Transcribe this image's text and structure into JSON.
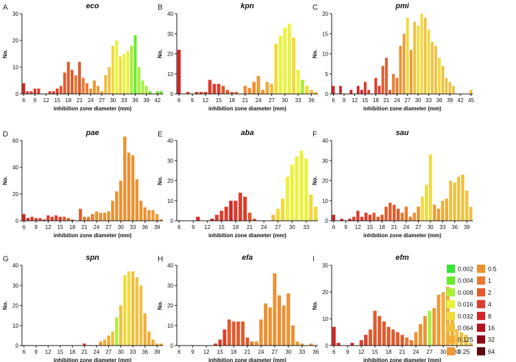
{
  "legend": [
    {
      "label": "0.002",
      "color": "#33e633"
    },
    {
      "label": "0.004",
      "color": "#66ee22"
    },
    {
      "label": "0.008",
      "color": "#a6f03a"
    },
    {
      "label": "0.016",
      "color": "#eaf23c"
    },
    {
      "label": "0.032",
      "color": "#f2d93c"
    },
    {
      "label": "0.064",
      "color": "#f0c040"
    },
    {
      "label": "0.125",
      "color": "#f0ac36"
    },
    {
      "label": "0.25",
      "color": "#ee9a34"
    },
    {
      "label": "0.5",
      "color": "#ee9030"
    },
    {
      "label": "1",
      "color": "#ea7a30"
    },
    {
      "label": "2",
      "color": "#e25a2c"
    },
    {
      "label": "4",
      "color": "#de3c2c"
    },
    {
      "label": "8",
      "color": "#d42424"
    },
    {
      "label": "16",
      "color": "#b8121e"
    },
    {
      "label": "32",
      "color": "#8c0a18"
    },
    {
      "label": "64",
      "color": "#5e0610"
    }
  ],
  "chart_data": [
    {
      "letter": "A",
      "title": "eco",
      "type": "bar",
      "xlabel": "inhibition zone diameter (mm)",
      "ylabel": "No.",
      "xlim": [
        6,
        43
      ],
      "ylim": [
        0,
        30
      ],
      "yticks": [
        0,
        10,
        20,
        30
      ],
      "xticks": [
        6,
        9,
        12,
        15,
        18,
        21,
        24,
        27,
        30,
        33,
        36,
        39,
        42
      ],
      "x": [
        6,
        7,
        8,
        9,
        10,
        11,
        12,
        13,
        14,
        15,
        16,
        17,
        18,
        19,
        20,
        21,
        22,
        23,
        24,
        25,
        26,
        27,
        28,
        29,
        30,
        31,
        32,
        33,
        34,
        35,
        36,
        37,
        38,
        39,
        40,
        41,
        42,
        43
      ],
      "values": [
        4,
        1,
        1,
        2,
        2,
        0,
        0,
        1,
        1,
        2,
        3,
        8,
        12,
        9,
        7,
        12,
        6,
        4,
        2,
        5,
        3,
        1,
        7,
        10,
        18,
        20,
        14,
        15,
        16,
        18,
        22,
        10,
        5,
        3,
        1,
        0,
        1,
        1
      ],
      "colors": [
        12,
        11,
        11,
        11,
        11,
        11,
        11,
        11,
        11,
        11,
        10,
        10,
        10,
        10,
        9,
        10,
        9,
        9,
        8,
        8,
        7,
        7,
        5,
        5,
        4,
        3,
        4,
        3,
        3,
        2,
        1,
        2,
        2,
        2,
        1,
        1,
        1,
        1
      ]
    },
    {
      "letter": "B",
      "title": "kpn",
      "type": "bar",
      "xlabel": "inhibition zone diameter (mm)",
      "ylabel": "No.",
      "xlim": [
        6,
        37
      ],
      "ylim": [
        0,
        40
      ],
      "yticks": [
        0,
        10,
        20,
        30,
        40
      ],
      "xticks": [
        6,
        9,
        12,
        15,
        18,
        21,
        24,
        27,
        30,
        33,
        36
      ],
      "x": [
        6,
        7,
        8,
        9,
        10,
        11,
        12,
        13,
        14,
        15,
        16,
        17,
        18,
        19,
        20,
        21,
        22,
        23,
        24,
        25,
        26,
        27,
        28,
        29,
        30,
        31,
        32,
        33,
        34,
        35,
        36,
        37
      ],
      "values": [
        22,
        0,
        1,
        0,
        1,
        1,
        1,
        7,
        5,
        5,
        4,
        2,
        1,
        1,
        0,
        4,
        3,
        6,
        9,
        2,
        6,
        5,
        25,
        29,
        33,
        35,
        28,
        12,
        7,
        4,
        2,
        1
      ],
      "colors": [
        12,
        12,
        11,
        11,
        11,
        11,
        11,
        11,
        11,
        11,
        10,
        10,
        10,
        10,
        10,
        8,
        8,
        8,
        7,
        7,
        6,
        5,
        4,
        3,
        3,
        3,
        4,
        3,
        2,
        4,
        5,
        5
      ]
    },
    {
      "letter": "C",
      "title": "pmi",
      "type": "bar",
      "xlabel": "inhibition zone diameter (mm)",
      "ylabel": "No.",
      "xlim": [
        6,
        45
      ],
      "ylim": [
        0,
        20
      ],
      "yticks": [
        0,
        5,
        10,
        15,
        20
      ],
      "xticks": [
        6,
        9,
        12,
        15,
        18,
        21,
        24,
        27,
        30,
        33,
        36,
        39,
        42,
        45
      ],
      "x": [
        6,
        7,
        8,
        9,
        10,
        11,
        12,
        13,
        14,
        15,
        16,
        17,
        18,
        19,
        20,
        21,
        22,
        23,
        24,
        25,
        26,
        27,
        28,
        29,
        30,
        31,
        32,
        33,
        34,
        35,
        36,
        37,
        38,
        39,
        40,
        41,
        42,
        43,
        44,
        45
      ],
      "values": [
        2,
        0,
        2,
        0,
        0,
        1,
        0,
        2,
        1,
        3,
        1,
        0,
        4,
        2,
        7,
        9,
        1,
        5,
        4,
        12,
        15,
        19,
        11,
        18,
        17,
        20,
        19,
        16,
        13,
        12,
        9,
        7,
        4,
        3,
        2,
        0,
        0,
        0,
        0,
        1
      ],
      "colors": [
        12,
        12,
        12,
        12,
        12,
        12,
        12,
        12,
        12,
        11,
        11,
        11,
        11,
        11,
        10,
        10,
        10,
        9,
        9,
        8,
        7,
        4,
        7,
        5,
        4,
        4,
        5,
        4,
        5,
        5,
        4,
        5,
        5,
        5,
        5,
        5,
        5,
        5,
        5,
        5
      ]
    },
    {
      "letter": "D",
      "title": "pae",
      "type": "bar",
      "xlabel": "inhibition zone diameter (mm)",
      "ylabel": "No.",
      "xlim": [
        6,
        40
      ],
      "ylim": [
        0,
        60
      ],
      "yticks": [
        0,
        20,
        40,
        60
      ],
      "xticks": [
        6,
        9,
        12,
        15,
        18,
        21,
        24,
        27,
        30,
        33,
        36,
        39
      ],
      "x": [
        6,
        7,
        8,
        9,
        10,
        11,
        12,
        13,
        14,
        15,
        16,
        17,
        18,
        19,
        20,
        21,
        22,
        23,
        24,
        25,
        26,
        27,
        28,
        29,
        30,
        31,
        32,
        33,
        34,
        35,
        36,
        37,
        38,
        39,
        40
      ],
      "values": [
        5,
        2,
        3,
        2,
        2,
        1,
        4,
        3,
        4,
        3,
        3,
        2,
        1,
        0,
        9,
        3,
        3,
        5,
        7,
        6,
        6,
        7,
        15,
        22,
        30,
        63,
        51,
        49,
        31,
        15,
        10,
        8,
        8,
        5,
        1
      ],
      "colors": [
        12,
        12,
        11,
        11,
        11,
        11,
        11,
        11,
        11,
        11,
        10,
        10,
        10,
        10,
        10,
        9,
        9,
        9,
        8,
        8,
        8,
        8,
        8,
        8,
        8,
        8,
        8,
        8,
        8,
        8,
        8,
        8,
        7,
        7,
        7
      ]
    },
    {
      "letter": "E",
      "title": "aba",
      "type": "bar",
      "xlabel": "inhibition zone diameter (mm)",
      "ylabel": "No.",
      "xlim": [
        6,
        35
      ],
      "ylim": [
        0,
        40
      ],
      "yticks": [
        0,
        10,
        20,
        30,
        40
      ],
      "xticks": [
        6,
        9,
        12,
        15,
        18,
        21,
        24,
        27,
        30,
        33
      ],
      "x": [
        6,
        7,
        8,
        9,
        10,
        11,
        12,
        13,
        14,
        15,
        16,
        17,
        18,
        19,
        20,
        21,
        22,
        23,
        24,
        25,
        26,
        27,
        28,
        29,
        30,
        31,
        32,
        33,
        34,
        35
      ],
      "values": [
        0,
        0,
        0,
        0,
        2,
        0,
        0,
        1,
        3,
        5,
        7,
        10,
        10,
        14,
        12,
        4,
        1,
        0,
        0,
        0,
        3,
        6,
        11,
        22,
        28,
        32,
        35,
        31,
        13,
        7
      ],
      "colors": [
        12,
        12,
        12,
        12,
        12,
        12,
        12,
        12,
        11,
        11,
        11,
        12,
        11,
        11,
        11,
        10,
        10,
        10,
        9,
        9,
        5,
        4,
        4,
        3,
        3,
        3,
        3,
        3,
        4,
        4
      ]
    },
    {
      "letter": "F",
      "title": "sau",
      "type": "bar",
      "xlabel": "inhibition zone diameter (mm)",
      "ylabel": "No.",
      "xlim": [
        6,
        40
      ],
      "ylim": [
        0,
        40
      ],
      "yticks": [
        0,
        10,
        20,
        30,
        40
      ],
      "xticks": [
        6,
        9,
        12,
        15,
        18,
        21,
        24,
        27,
        30,
        33,
        36,
        39
      ],
      "x": [
        6,
        7,
        8,
        9,
        10,
        11,
        12,
        13,
        14,
        15,
        16,
        17,
        18,
        19,
        20,
        21,
        22,
        23,
        24,
        25,
        26,
        27,
        28,
        29,
        30,
        31,
        32,
        33,
        34,
        35,
        36,
        37,
        38,
        39,
        40
      ],
      "values": [
        3,
        0,
        1,
        0,
        1,
        2,
        5,
        2,
        4,
        3,
        4,
        2,
        3,
        7,
        9,
        8,
        6,
        4,
        7,
        2,
        4,
        7,
        12,
        18,
        33,
        8,
        6,
        10,
        11,
        20,
        19,
        22,
        23,
        15,
        7
      ],
      "colors": [
        12,
        12,
        12,
        12,
        12,
        11,
        11,
        11,
        11,
        11,
        10,
        10,
        10,
        10,
        10,
        10,
        10,
        9,
        9,
        9,
        8,
        8,
        4,
        4,
        4,
        7,
        7,
        6,
        6,
        5,
        5,
        5,
        5,
        5,
        5
      ]
    },
    {
      "letter": "G",
      "title": "spn",
      "type": "bar",
      "xlabel": "inhibition zone diameter (mm)",
      "ylabel": "No.",
      "xlim": [
        6,
        40
      ],
      "ylim": [
        0,
        40
      ],
      "yticks": [
        0,
        10,
        20,
        30,
        40
      ],
      "xticks": [
        6,
        9,
        12,
        15,
        18,
        21,
        24,
        27,
        30,
        33,
        36,
        39
      ],
      "x": [
        6,
        7,
        8,
        9,
        10,
        11,
        12,
        13,
        14,
        15,
        16,
        17,
        18,
        19,
        20,
        21,
        22,
        23,
        24,
        25,
        26,
        27,
        28,
        29,
        30,
        31,
        32,
        33,
        34,
        35,
        36,
        37,
        38,
        39,
        40
      ],
      "values": [
        0,
        0,
        0,
        0,
        0,
        0,
        0,
        0,
        0,
        0,
        0,
        0,
        0,
        0,
        0,
        1,
        0,
        0,
        0,
        2,
        3,
        5,
        7,
        14,
        20,
        35,
        37,
        37,
        34,
        30,
        16,
        7,
        3,
        1,
        1
      ],
      "colors": [
        11,
        11,
        11,
        11,
        11,
        11,
        11,
        11,
        11,
        11,
        11,
        11,
        11,
        11,
        11,
        11,
        11,
        11,
        11,
        7,
        6,
        6,
        5,
        2,
        5,
        4,
        4,
        5,
        5,
        5,
        6,
        6,
        6,
        6,
        6
      ]
    },
    {
      "letter": "H",
      "title": "efa",
      "type": "bar",
      "xlabel": "inhibition zone diameter (mm)",
      "ylabel": "No.",
      "xlim": [
        6,
        36
      ],
      "ylim": [
        0,
        40
      ],
      "yticks": [
        0,
        10,
        20,
        30,
        40
      ],
      "xticks": [
        6,
        9,
        12,
        15,
        18,
        21,
        24,
        27,
        30,
        33,
        36
      ],
      "x": [
        6,
        7,
        8,
        9,
        10,
        11,
        12,
        13,
        14,
        15,
        16,
        17,
        18,
        19,
        20,
        21,
        22,
        23,
        24,
        25,
        26,
        27,
        28,
        29,
        30,
        31,
        32,
        33,
        34,
        35,
        36
      ],
      "values": [
        0,
        0,
        0,
        0,
        0,
        0,
        0,
        0,
        1,
        3,
        8,
        13,
        12,
        12,
        12,
        4,
        2,
        2,
        13,
        21,
        19,
        36,
        25,
        20,
        26,
        10,
        2,
        1,
        0,
        1,
        0
      ],
      "colors": [
        11,
        11,
        11,
        11,
        11,
        11,
        11,
        11,
        11,
        11,
        11,
        10,
        10,
        10,
        10,
        10,
        9,
        8,
        8,
        8,
        8,
        8,
        8,
        8,
        8,
        8,
        7,
        7,
        7,
        7,
        7
      ]
    },
    {
      "letter": "I",
      "title": "efm",
      "type": "bar",
      "xlabel": "inhibition zone diameter (mm)",
      "ylabel": "No.",
      "xlim": [
        6,
        36
      ],
      "ylim": [
        0,
        30
      ],
      "yticks": [
        0,
        10,
        20,
        30
      ],
      "xticks": [
        6,
        9,
        12,
        15,
        18,
        21,
        24,
        27,
        30,
        33
      ],
      "x": [
        6,
        7,
        8,
        9,
        10,
        11,
        12,
        13,
        14,
        15,
        16,
        17,
        18,
        19,
        20,
        21,
        22,
        23,
        24,
        25,
        26,
        27,
        28,
        29,
        30,
        31,
        32,
        33,
        34,
        35,
        36
      ],
      "values": [
        7,
        1,
        0,
        0,
        1,
        0,
        2,
        4,
        6,
        13,
        11,
        9,
        7,
        6,
        5,
        4,
        3,
        2,
        5,
        8,
        11,
        13,
        14,
        19,
        20,
        22,
        12,
        6,
        5,
        4,
        1
      ],
      "colors": [
        12,
        12,
        12,
        12,
        12,
        11,
        11,
        11,
        10,
        10,
        10,
        10,
        10,
        10,
        10,
        10,
        9,
        9,
        8,
        8,
        8,
        2,
        7,
        7,
        6,
        6,
        6,
        5,
        5,
        5,
        5
      ]
    }
  ]
}
